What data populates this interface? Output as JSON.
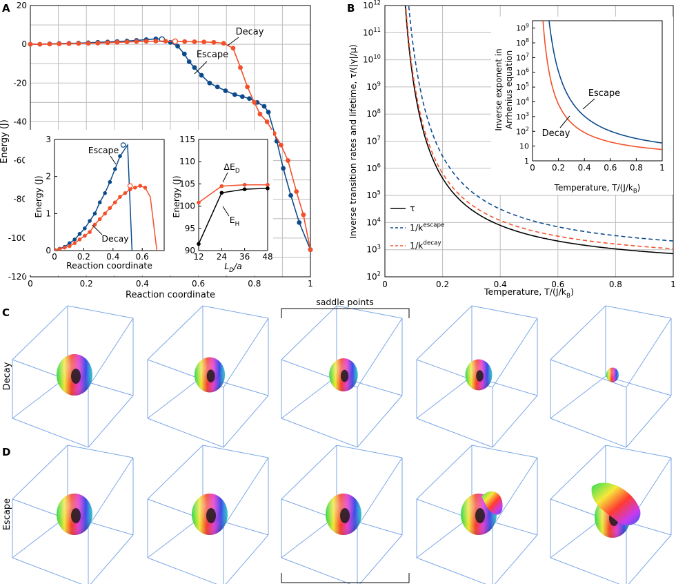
{
  "colors": {
    "escape": "#0c4a8c",
    "decay": "#f2502a",
    "tau": "#000000",
    "grid": "#bdbdbd",
    "box": "#7aa6e6"
  },
  "panel_labels": {
    "a": "A",
    "b": "B",
    "c": "C",
    "d": "D"
  },
  "row_labels": {
    "decay": "Decay",
    "escape": "Escape"
  },
  "saddle_label": "saddle points",
  "chart_data": [
    {
      "id": "A",
      "type": "line",
      "xlabel": "Reaction coordinate",
      "ylabel": "Energy (J)",
      "xlim": [
        0,
        1
      ],
      "ylim": [
        -120,
        20
      ],
      "xticks": [
        "0",
        "0.2",
        "0.4",
        "0.6",
        "0.8",
        "1"
      ],
      "xtick_values": [
        0,
        0.2,
        0.4,
        0.6,
        0.8,
        1
      ],
      "yticks": [
        "20",
        "0",
        "-20",
        "-40",
        "-60",
        "-80",
        "-100",
        "-120"
      ],
      "ytick_values": [
        20,
        0,
        -20,
        -40,
        -60,
        -80,
        -100,
        -120
      ],
      "series": [
        {
          "name": "Escape",
          "x": [
            0,
            0.034,
            0.069,
            0.103,
            0.138,
            0.172,
            0.207,
            0.241,
            0.276,
            0.31,
            0.345,
            0.379,
            0.414,
            0.448,
            0.47,
            0.5,
            0.526,
            0.55,
            0.567,
            0.586,
            0.611,
            0.64,
            0.668,
            0.697,
            0.73,
            0.757,
            0.782,
            0.81,
            0.835,
            0.85,
            0.88,
            0.903,
            0.93,
            0.96,
            1.0
          ],
          "y": [
            0,
            0,
            0.2,
            0.4,
            0.5,
            0.6,
            0.8,
            1.0,
            1.2,
            1.4,
            1.7,
            2.0,
            2.4,
            2.8,
            2.6,
            1.0,
            -1.0,
            -5.0,
            -9.0,
            -12.0,
            -16.0,
            -20.0,
            -22.0,
            -24.0,
            -26.0,
            -27.0,
            -28.0,
            -30.0,
            -32.0,
            -35.0,
            -50.0,
            -64.0,
            -78.0,
            -92.0,
            -106.0
          ],
          "saddle": [
            0.47,
            2.6
          ]
        },
        {
          "name": "Decay",
          "x": [
            0,
            0.034,
            0.069,
            0.103,
            0.138,
            0.172,
            0.207,
            0.241,
            0.276,
            0.31,
            0.345,
            0.379,
            0.414,
            0.448,
            0.483,
            0.517,
            0.551,
            0.586,
            0.62,
            0.655,
            0.69,
            0.724,
            0.75,
            0.775,
            0.8,
            0.82,
            0.845,
            0.87,
            0.895,
            0.92,
            0.95,
            0.975,
            1.0
          ],
          "y": [
            0,
            0,
            0.1,
            0.2,
            0.3,
            0.4,
            0.5,
            0.6,
            0.8,
            1.0,
            1.2,
            1.4,
            1.5,
            1.6,
            1.6,
            1.5,
            1.4,
            1.3,
            1.2,
            1.0,
            0.5,
            -2.0,
            -12.0,
            -22.0,
            -30.0,
            -36.0,
            -40.0,
            -46.0,
            -52.0,
            -60.0,
            -76.0,
            -88.0,
            -106.0
          ],
          "saddle": [
            0.517,
            1.5
          ]
        }
      ],
      "annotations": [
        "Decay",
        "Escape"
      ]
    },
    {
      "id": "A-inset-1",
      "type": "line",
      "xlabel": "Reaction coordinate",
      "ylabel": "Energy (J)",
      "xlim": [
        0,
        0.75
      ],
      "ylim": [
        0,
        3
      ],
      "xticks": [
        "0",
        "0.2",
        "0.4",
        "0.6"
      ],
      "xtick_values": [
        0,
        0.2,
        0.4,
        0.6
      ],
      "yticks": [
        "0",
        "1",
        "2",
        "3"
      ],
      "ytick_values": [
        0,
        1,
        2,
        3
      ],
      "series": [
        {
          "name": "Escape",
          "x": [
            0,
            0.035,
            0.069,
            0.103,
            0.138,
            0.172,
            0.207,
            0.241,
            0.276,
            0.31,
            0.345,
            0.379,
            0.414,
            0.448,
            0.5
          ],
          "y": [
            0.02,
            0.05,
            0.1,
            0.2,
            0.3,
            0.45,
            0.6,
            0.8,
            1.0,
            1.3,
            1.55,
            1.85,
            2.2,
            2.55,
            2.85
          ],
          "saddle": [
            0.47,
            2.85
          ],
          "tail": [
            [
              0.5,
              2.85
            ],
            [
              0.53,
              0.0
            ]
          ]
        },
        {
          "name": "Decay",
          "x": [
            0,
            0.035,
            0.069,
            0.103,
            0.138,
            0.172,
            0.207,
            0.241,
            0.276,
            0.31,
            0.345,
            0.379,
            0.414,
            0.448,
            0.483,
            0.517,
            0.551,
            0.586,
            0.62,
            0.655
          ],
          "y": [
            0.02,
            0.04,
            0.08,
            0.12,
            0.2,
            0.3,
            0.4,
            0.5,
            0.7,
            0.85,
            1.0,
            1.15,
            1.3,
            1.45,
            1.55,
            1.65,
            1.7,
            1.75,
            1.7,
            1.45
          ],
          "saddle": [
            0.517,
            1.75
          ],
          "tail": [
            [
              0.655,
              1.45
            ],
            [
              0.7,
              0.0
            ]
          ]
        }
      ],
      "annotations": [
        "Escape",
        "Decay"
      ]
    },
    {
      "id": "A-inset-2",
      "type": "line",
      "xlabel": "L_D/a",
      "ylabel": "Energy (J)",
      "xlim": [
        12,
        48
      ],
      "ylim": [
        90,
        115
      ],
      "xticks": [
        "12",
        "24",
        "36",
        "48"
      ],
      "xtick_values": [
        12,
        24,
        36,
        48
      ],
      "yticks": [
        "90",
        "95",
        "100",
        "105",
        "110",
        "115"
      ],
      "ytick_values": [
        90,
        95,
        100,
        105,
        110,
        115
      ],
      "series": [
        {
          "name": "ΔE_D",
          "x": [
            12,
            24,
            36,
            48
          ],
          "y": [
            100.8,
            104.5,
            104.8,
            104.8
          ]
        },
        {
          "name": "E_H",
          "x": [
            12,
            24,
            36,
            48
          ],
          "y": [
            91.5,
            103.0,
            103.8,
            104.0
          ]
        }
      ],
      "annotations": [
        "ΔE_D",
        "E_H"
      ]
    },
    {
      "id": "B",
      "type": "line",
      "xlabel": "Temperature, T/(J/k_B)",
      "ylabel": "Inverse transition rates and lifetime, τ/(|γ|/μ)",
      "xlim": [
        0,
        1
      ],
      "ylim_log10": [
        2,
        12
      ],
      "xticks": [
        "0",
        "0.2",
        "0.4",
        "0.6",
        "0.8",
        "1"
      ],
      "xtick_values": [
        0,
        0.2,
        0.4,
        0.6,
        0.8,
        1
      ],
      "yticks": [
        "10^2",
        "10^3",
        "10^4",
        "10^5",
        "10^6",
        "10^7",
        "10^8",
        "10^9",
        "10^10",
        "10^11",
        "10^12"
      ],
      "ytick_exponents": [
        2,
        3,
        4,
        5,
        6,
        7,
        8,
        9,
        10,
        11,
        12
      ],
      "legend": [
        "τ",
        "1/k^escape",
        "1/k^decay"
      ],
      "legend_position": "bottom-left",
      "series": [
        {
          "name": "τ",
          "model": "A*exp(E/T)",
          "A_log10": 2.16,
          "E": 1.6
        },
        {
          "name": "1/k^escape",
          "model": "A*exp(E/T)",
          "A_log10": 2.54,
          "E": 1.8
        },
        {
          "name": "1/k^decay",
          "model": "A*exp(E/T)",
          "A_log10": 2.34,
          "E": 1.6
        }
      ]
    },
    {
      "id": "B-inset",
      "type": "line",
      "xlabel": "Temperature, T/(J/k_B)",
      "ylabel": "Inverse exponent in Arrhenius equation",
      "xlim": [
        0,
        1
      ],
      "ylim_log10": [
        0,
        9.5
      ],
      "xticks": [
        "0",
        "0.2",
        "0.4",
        "0.6",
        "0.8",
        "1"
      ],
      "xtick_values": [
        0,
        0.2,
        0.4,
        0.6,
        0.8,
        1
      ],
      "yticks": [
        "1",
        "10",
        "10^2",
        "10^3",
        "10^4",
        "10^5",
        "10^6",
        "10^7",
        "10^8",
        "10^9"
      ],
      "ytick_exponents": [
        0,
        1,
        2,
        3,
        4,
        5,
        6,
        7,
        8,
        9
      ],
      "series": [
        {
          "name": "Escape",
          "model": "exp(E/T)",
          "E": 2.79
        },
        {
          "name": "Decay",
          "model": "exp(E/T)",
          "E": 1.77
        }
      ],
      "annotations": [
        "Escape",
        "Decay"
      ]
    }
  ]
}
